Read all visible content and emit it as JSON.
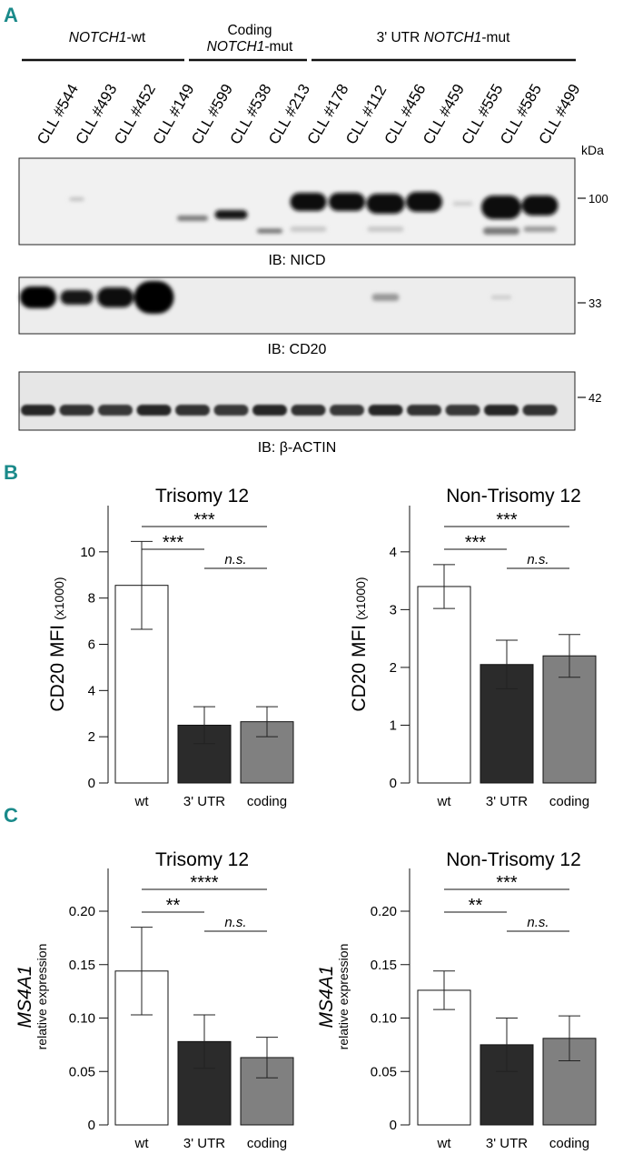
{
  "panel_labels": {
    "a": "A",
    "b": "B",
    "c": "C"
  },
  "blot": {
    "groups": [
      {
        "label_lines": [
          {
            "text": "NOTCH1",
            "italic": true,
            "suffix": "-wt"
          }
        ]
      },
      {
        "label_lines": [
          {
            "text": "Coding",
            "italic": false,
            "suffix": ""
          },
          {
            "text": "NOTCH1",
            "italic": true,
            "suffix": "-mut"
          }
        ]
      },
      {
        "label_lines": [
          {
            "text": "3' UTR ",
            "italic": false,
            "suffix": ""
          },
          {
            "text": "NOTCH1",
            "italic": true,
            "suffix": "-mut"
          }
        ]
      }
    ],
    "lanes": [
      "CLL #544",
      "CLL #493",
      "CLL #452",
      "CLL #149",
      "CLL #599",
      "CLL #538",
      "CLL #213",
      "CLL #178",
      "CLL #112",
      "CLL #456",
      "CLL #459",
      "CLL #555",
      "CLL #585",
      "CLL #499"
    ],
    "kda_label": "kDa",
    "blots": [
      {
        "ib": "IB: NICD",
        "marker": "100"
      },
      {
        "ib": "IB: CD20",
        "marker": "33"
      },
      {
        "ib": "IB: β-ACTIN",
        "marker": "42"
      }
    ]
  },
  "chart_data": [
    {
      "type": "bar",
      "panel": "B",
      "title": "Trisomy 12",
      "ylabel": "CD20 MFI",
      "ylabel_suffix": "(x1000)",
      "ylim": [
        0,
        12
      ],
      "yticks": [
        "0",
        "2",
        "4",
        "6",
        "8",
        "10"
      ],
      "categories": [
        "wt",
        "3' UTR",
        "coding"
      ],
      "values": [
        8.55,
        2.5,
        2.65
      ],
      "errors": [
        1.9,
        0.8,
        0.65
      ],
      "colors": [
        "#ffffff",
        "#2b2b2b",
        "#808080"
      ],
      "significance": [
        {
          "from": "wt",
          "to": "coding",
          "label": "***",
          "italic": false
        },
        {
          "from": "wt",
          "to": "3' UTR",
          "label": "***",
          "italic": false
        },
        {
          "from": "3' UTR",
          "to": "coding",
          "label": "n.s.",
          "italic": true
        }
      ]
    },
    {
      "type": "bar",
      "panel": "B",
      "title": "Non-Trisomy 12",
      "ylabel": "CD20 MFI",
      "ylabel_suffix": "(x1000)",
      "ylim": [
        0,
        4.8
      ],
      "yticks": [
        "0",
        "1",
        "2",
        "3",
        "4"
      ],
      "categories": [
        "wt",
        "3' UTR",
        "coding"
      ],
      "values": [
        3.4,
        2.05,
        2.2
      ],
      "errors": [
        0.38,
        0.42,
        0.37
      ],
      "colors": [
        "#ffffff",
        "#2b2b2b",
        "#808080"
      ],
      "significance": [
        {
          "from": "wt",
          "to": "coding",
          "label": "***",
          "italic": false
        },
        {
          "from": "wt",
          "to": "3' UTR",
          "label": "***",
          "italic": false
        },
        {
          "from": "3' UTR",
          "to": "coding",
          "label": "n.s.",
          "italic": true
        }
      ]
    },
    {
      "type": "bar",
      "panel": "C",
      "title": "Trisomy 12",
      "ylabel": "MS4A1",
      "ylabel_sub": "relative expression",
      "ylim": [
        0,
        0.24
      ],
      "yticks": [
        "0",
        "0.05",
        "0.10",
        "0.15",
        "0.20"
      ],
      "categories": [
        "wt",
        "3' UTR",
        "coding"
      ],
      "values": [
        0.144,
        0.078,
        0.063
      ],
      "errors": [
        0.041,
        0.025,
        0.019
      ],
      "colors": [
        "#ffffff",
        "#2b2b2b",
        "#808080"
      ],
      "significance": [
        {
          "from": "wt",
          "to": "coding",
          "label": "****",
          "italic": false
        },
        {
          "from": "wt",
          "to": "3' UTR",
          "label": "**",
          "italic": false
        },
        {
          "from": "3' UTR",
          "to": "coding",
          "label": "n.s.",
          "italic": true
        }
      ]
    },
    {
      "type": "bar",
      "panel": "C",
      "title": "Non-Trisomy 12",
      "ylabel": "MS4A1",
      "ylabel_sub": "relative expression",
      "ylim": [
        0,
        0.24
      ],
      "yticks": [
        "0",
        "0.05",
        "0.10",
        "0.15",
        "0.20"
      ],
      "categories": [
        "wt",
        "3' UTR",
        "coding"
      ],
      "values": [
        0.126,
        0.075,
        0.081
      ],
      "errors": [
        0.018,
        0.025,
        0.021
      ],
      "colors": [
        "#ffffff",
        "#2b2b2b",
        "#808080"
      ],
      "significance": [
        {
          "from": "wt",
          "to": "coding",
          "label": "***",
          "italic": false
        },
        {
          "from": "wt",
          "to": "3' UTR",
          "label": "**",
          "italic": false
        },
        {
          "from": "3' UTR",
          "to": "coding",
          "label": "n.s.",
          "italic": true
        }
      ]
    }
  ],
  "colors": {
    "panel_label": "#1a8a8a"
  }
}
